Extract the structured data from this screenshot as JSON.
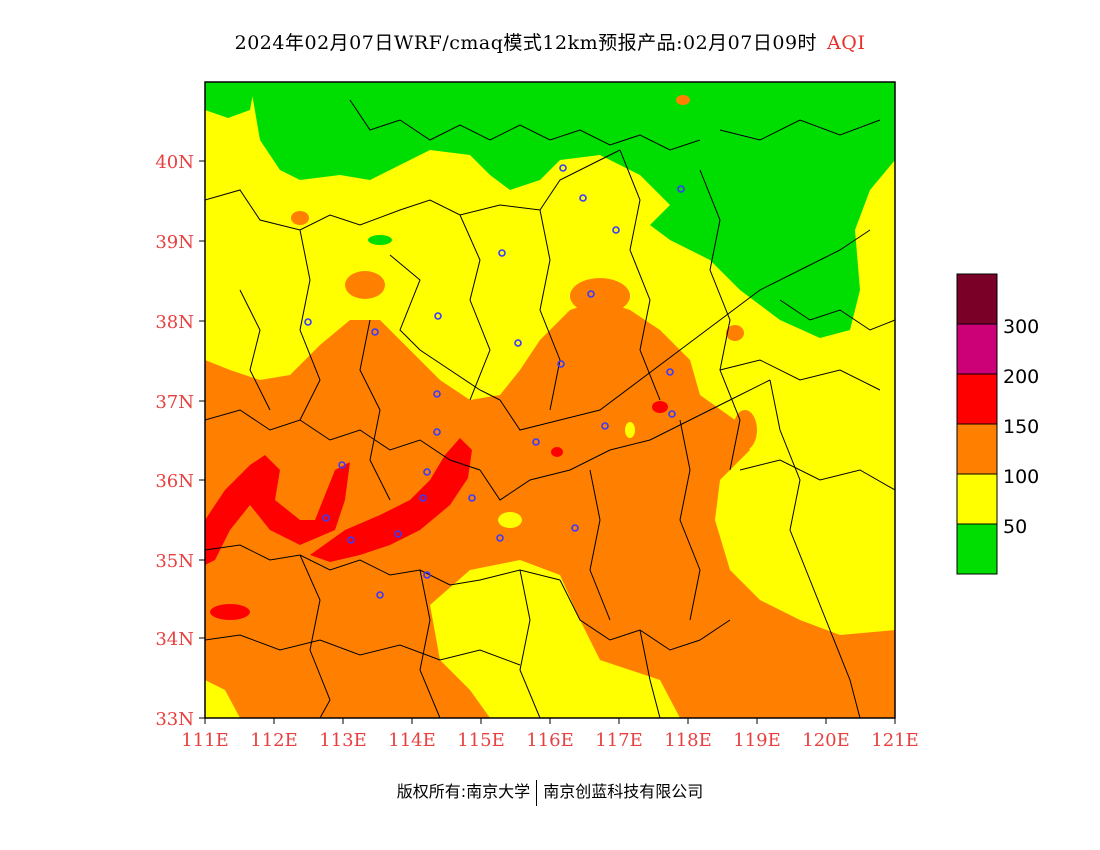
{
  "title": {
    "main": "2024年02月07日WRF/cmaq模式12km预报产品:02月07日09时",
    "suffix": "AQI"
  },
  "footer": {
    "left": "版权所有:南京大学",
    "right": "南京创蓝科技有限公司"
  },
  "axes": {
    "lon_ticks": [
      "111E",
      "112E",
      "113E",
      "114E",
      "115E",
      "116E",
      "117E",
      "118E",
      "119E",
      "120E",
      "121E"
    ],
    "lat_ticks": [
      "33N",
      "34N",
      "35N",
      "36N",
      "37N",
      "38N",
      "39N",
      "40N"
    ]
  },
  "legend": {
    "labels": [
      "300",
      "200",
      "150",
      "100",
      "50"
    ],
    "colors": [
      "#7a0028",
      "#cc0077",
      "#ff0000",
      "#ff8000",
      "#ffff00",
      "#00dd00"
    ]
  },
  "colors": {
    "green": "#00dd00",
    "yellow": "#ffff00",
    "orange": "#ff8000",
    "red": "#ff0000",
    "city": "#3a3aff",
    "label": "#e84040"
  }
}
